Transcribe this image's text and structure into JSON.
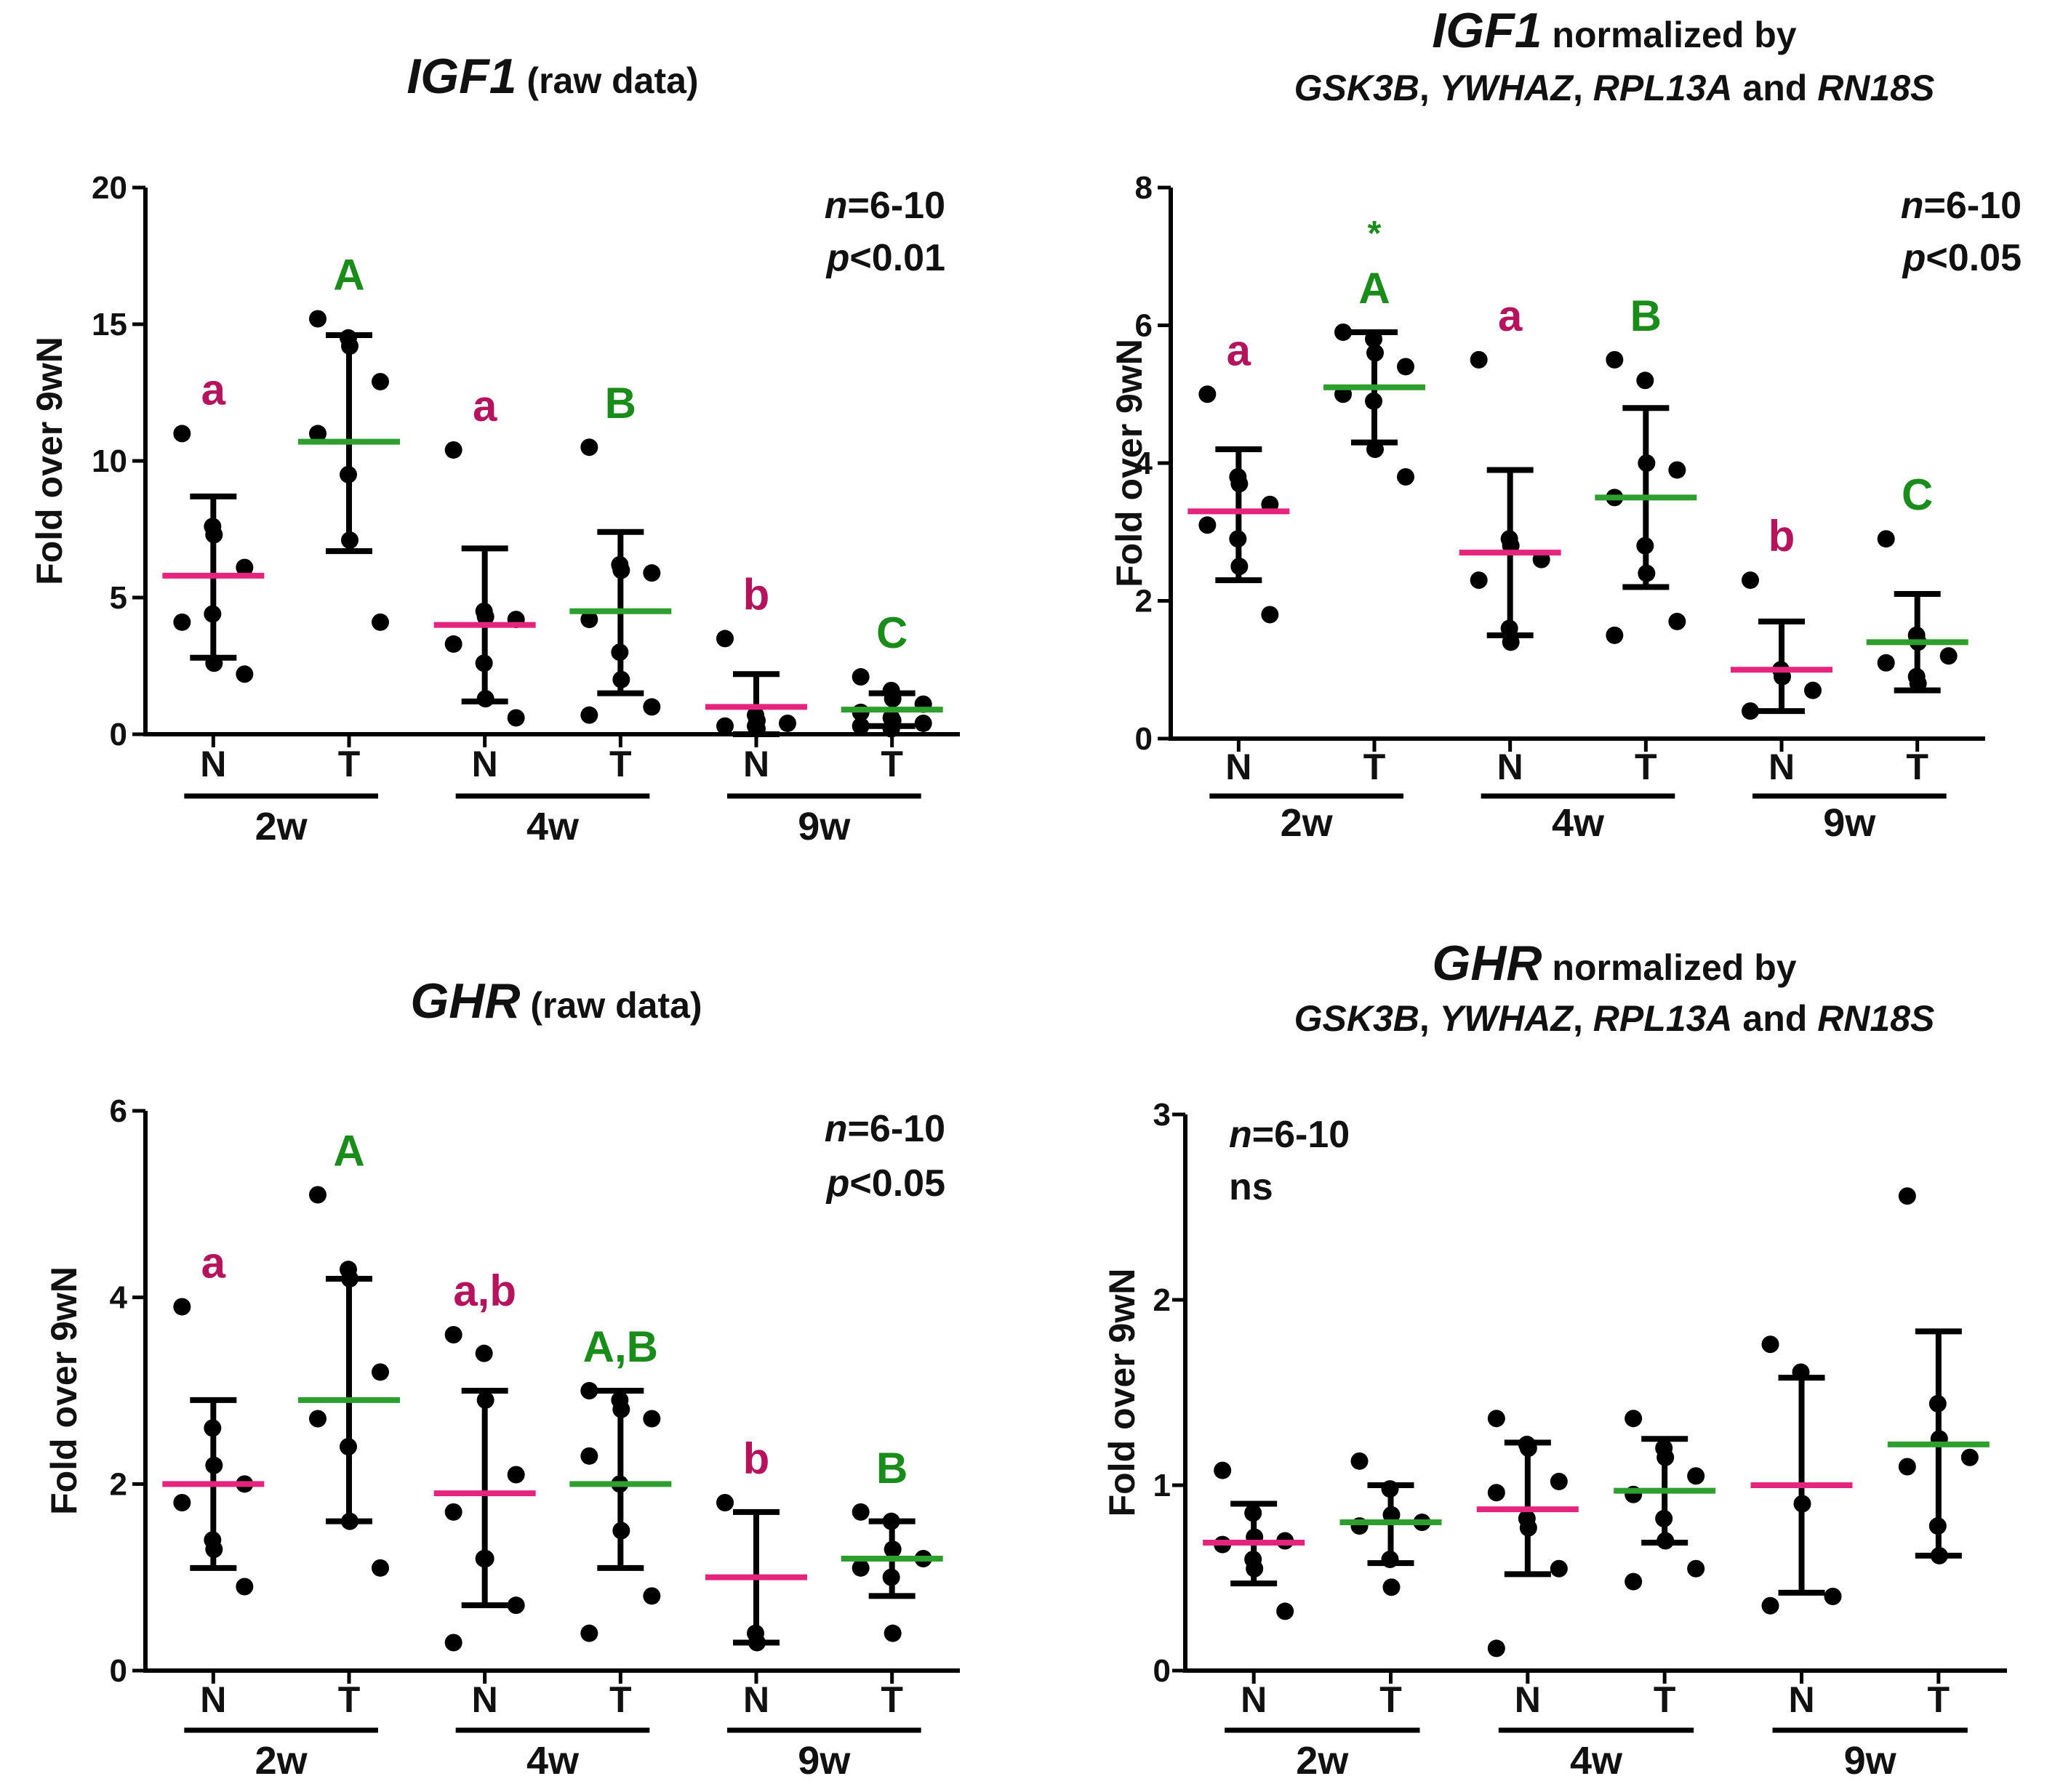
{
  "chart_data": [
    {
      "type": "scatter",
      "title_gene": "IGF1",
      "title_suffix": "(raw data)",
      "title_line2_parts": [],
      "ylabel": "Fold over 9wN",
      "ylim": [
        0,
        20
      ],
      "yticks": [
        "0",
        "5",
        "10",
        "15",
        "20"
      ],
      "stats_n_prefix": "n",
      "stats_n_value": "=6-10",
      "stats_p_prefix": "p",
      "stats_p_value": "<0.01",
      "categories": [
        "N",
        "T",
        "N",
        "T",
        "N",
        "T"
      ],
      "age_groups": [
        "2w",
        "4w",
        "9w"
      ],
      "groups": [
        {
          "label": "N",
          "age": "2w",
          "mean": 5.8,
          "sd_low": 2.8,
          "sd_high": 8.7,
          "letter": "a",
          "points": [
            11.0,
            7.6,
            7.3,
            6.1,
            4.1,
            4.4,
            2.6,
            2.2
          ]
        },
        {
          "label": "T",
          "age": "2w",
          "mean": 10.7,
          "sd_low": 6.7,
          "sd_high": 14.6,
          "letter": "A",
          "points": [
            15.2,
            14.5,
            14.2,
            12.9,
            11.0,
            9.5,
            7.1,
            4.1
          ]
        },
        {
          "label": "N",
          "age": "4w",
          "mean": 4.0,
          "sd_low": 1.2,
          "sd_high": 6.8,
          "letter": "a",
          "points": [
            10.4,
            4.5,
            4.3,
            4.2,
            3.3,
            2.6,
            1.3,
            0.6
          ]
        },
        {
          "label": "T",
          "age": "4w",
          "mean": 4.5,
          "sd_low": 1.5,
          "sd_high": 7.4,
          "letter": "B",
          "points": [
            10.5,
            6.2,
            6.0,
            5.9,
            4.2,
            3.0,
            2.0,
            1.0,
            0.7
          ]
        },
        {
          "label": "N",
          "age": "9w",
          "mean": 1.0,
          "sd_low": 0.0,
          "sd_high": 2.2,
          "letter": "b",
          "points": [
            3.5,
            0.7,
            0.5,
            0.4,
            0.3,
            0.3,
            0.2
          ]
        },
        {
          "label": "T",
          "age": "9w",
          "mean": 0.9,
          "sd_low": 0.3,
          "sd_high": 1.5,
          "letter": "C",
          "points": [
            2.1,
            1.6,
            1.3,
            1.1,
            0.8,
            0.6,
            0.5,
            0.4,
            0.3,
            0.2
          ]
        }
      ],
      "colors": {
        "N": "#b5135e",
        "T": "#1a8c1a",
        "N_mean": "#e5257d",
        "T_mean": "#2e9e2e"
      }
    },
    {
      "type": "scatter",
      "title_gene": "IGF1",
      "title_suffix": "normalized by",
      "title_line2_parts": [
        "GSK3B",
        ", ",
        "YWHAZ",
        ", ",
        "RPL13A",
        " and ",
        "RN18S"
      ],
      "ylabel": "Fold over 9wN",
      "ylim": [
        0,
        8
      ],
      "yticks": [
        "0",
        "2",
        "4",
        "6",
        "8"
      ],
      "stats_n_prefix": "n",
      "stats_n_value": "=6-10",
      "stats_p_prefix": "p",
      "stats_p_value": "<0.05",
      "categories": [
        "N",
        "T",
        "N",
        "T",
        "N",
        "T"
      ],
      "age_groups": [
        "2w",
        "4w",
        "9w"
      ],
      "groups": [
        {
          "label": "N",
          "age": "2w",
          "mean": 3.3,
          "sd_low": 2.3,
          "sd_high": 4.2,
          "letter": "a",
          "points": [
            5.0,
            3.8,
            3.7,
            3.4,
            3.1,
            2.9,
            2.5,
            1.8
          ]
        },
        {
          "label": "T",
          "age": "2w",
          "mean": 5.1,
          "sd_low": 4.3,
          "sd_high": 5.9,
          "letter": "A",
          "star": "*",
          "points": [
            5.9,
            5.8,
            5.6,
            5.4,
            5.0,
            4.9,
            4.2,
            3.8
          ]
        },
        {
          "label": "N",
          "age": "4w",
          "mean": 2.7,
          "sd_low": 1.5,
          "sd_high": 3.9,
          "letter": "a",
          "points": [
            5.5,
            2.9,
            2.8,
            2.6,
            2.3,
            1.6,
            1.4
          ]
        },
        {
          "label": "T",
          "age": "4w",
          "mean": 3.5,
          "sd_low": 2.2,
          "sd_high": 4.8,
          "letter": "B",
          "points": [
            5.5,
            5.2,
            4.0,
            3.9,
            3.5,
            2.8,
            2.4,
            1.7,
            1.5
          ]
        },
        {
          "label": "N",
          "age": "9w",
          "mean": 1.0,
          "sd_low": 0.4,
          "sd_high": 1.7,
          "letter": "b",
          "points": [
            2.3,
            1.0,
            0.9,
            0.7,
            0.4
          ]
        },
        {
          "label": "T",
          "age": "9w",
          "mean": 1.4,
          "sd_low": 0.7,
          "sd_high": 2.1,
          "letter": "C",
          "points": [
            2.9,
            1.5,
            1.4,
            1.2,
            1.1,
            0.9,
            0.8
          ]
        }
      ],
      "colors": {
        "N": "#b5135e",
        "T": "#1a8c1a",
        "N_mean": "#e5257d",
        "T_mean": "#2e9e2e"
      }
    },
    {
      "type": "scatter",
      "title_gene": "GHR",
      "title_suffix": "(raw data)",
      "title_line2_parts": [],
      "ylabel": "Fold over 9wN",
      "ylim": [
        0,
        6
      ],
      "yticks": [
        "0",
        "2",
        "4",
        "6"
      ],
      "stats_n_prefix": "n",
      "stats_n_value": "=6-10",
      "stats_p_prefix": "p",
      "stats_p_value": "<0.05",
      "categories": [
        "N",
        "T",
        "N",
        "T",
        "N",
        "T"
      ],
      "age_groups": [
        "2w",
        "4w",
        "9w"
      ],
      "groups": [
        {
          "label": "N",
          "age": "2w",
          "mean": 2.0,
          "sd_low": 1.1,
          "sd_high": 2.9,
          "letter": "a",
          "points": [
            3.9,
            2.6,
            2.2,
            2.0,
            1.8,
            1.4,
            1.3,
            0.9
          ]
        },
        {
          "label": "T",
          "age": "2w",
          "mean": 2.9,
          "sd_low": 1.6,
          "sd_high": 4.2,
          "letter": "A",
          "points": [
            5.1,
            4.3,
            4.2,
            3.2,
            2.7,
            2.4,
            1.6,
            1.1
          ]
        },
        {
          "label": "N",
          "age": "4w",
          "mean": 1.9,
          "sd_low": 0.7,
          "sd_high": 3.0,
          "letter": "a,b",
          "points": [
            3.6,
            3.4,
            2.9,
            2.1,
            1.7,
            1.2,
            1.2,
            0.7,
            0.3
          ]
        },
        {
          "label": "T",
          "age": "4w",
          "mean": 2.0,
          "sd_low": 1.1,
          "sd_high": 3.0,
          "letter": "A,B",
          "points": [
            3.0,
            2.9,
            2.8,
            2.7,
            2.3,
            2.0,
            1.5,
            0.8,
            0.4
          ]
        },
        {
          "label": "N",
          "age": "9w",
          "mean": 1.0,
          "sd_low": 0.3,
          "sd_high": 1.7,
          "letter": "b",
          "points": [
            1.8,
            0.4,
            0.3
          ]
        },
        {
          "label": "T",
          "age": "9w",
          "mean": 1.2,
          "sd_low": 0.8,
          "sd_high": 1.6,
          "letter": "B",
          "points": [
            1.7,
            1.6,
            1.3,
            1.2,
            1.1,
            1.0,
            0.4
          ]
        }
      ],
      "colors": {
        "N": "#b5135e",
        "T": "#1a8c1a",
        "N_mean": "#e5257d",
        "T_mean": "#2e9e2e"
      }
    },
    {
      "type": "scatter",
      "title_gene": "GHR",
      "title_suffix": "normalized by",
      "title_line2_parts": [
        "GSK3B",
        ", ",
        "YWHAZ",
        ", ",
        "RPL13A",
        " and ",
        "RN18S"
      ],
      "ylabel": "Fold over 9wN",
      "ylim": [
        0,
        3
      ],
      "yticks": [
        "0",
        "1",
        "2",
        "3"
      ],
      "stats_n_prefix": "n",
      "stats_n_value": "=6-10",
      "stats_p_prefix": "",
      "stats_p_value": "ns",
      "categories": [
        "N",
        "T",
        "N",
        "T",
        "N",
        "T"
      ],
      "age_groups": [
        "2w",
        "4w",
        "9w"
      ],
      "groups": [
        {
          "label": "N",
          "age": "2w",
          "mean": 0.69,
          "sd_low": 0.47,
          "sd_high": 0.9,
          "letter": "",
          "points": [
            1.08,
            0.85,
            0.72,
            0.7,
            0.68,
            0.6,
            0.55,
            0.32
          ]
        },
        {
          "label": "T",
          "age": "2w",
          "mean": 0.8,
          "sd_low": 0.58,
          "sd_high": 1.0,
          "letter": "",
          "points": [
            1.13,
            0.98,
            0.84,
            0.8,
            0.78,
            0.6,
            0.45
          ]
        },
        {
          "label": "N",
          "age": "4w",
          "mean": 0.87,
          "sd_low": 0.52,
          "sd_high": 1.23,
          "letter": "",
          "points": [
            1.36,
            1.22,
            1.2,
            1.02,
            0.96,
            0.82,
            0.77,
            0.55,
            0.12
          ]
        },
        {
          "label": "T",
          "age": "4w",
          "mean": 0.97,
          "sd_low": 0.69,
          "sd_high": 1.25,
          "letter": "",
          "points": [
            1.36,
            1.2,
            1.15,
            1.05,
            0.95,
            0.82,
            0.7,
            0.55,
            0.48
          ]
        },
        {
          "label": "N",
          "age": "9w",
          "mean": 1.0,
          "sd_low": 0.42,
          "sd_high": 1.58,
          "letter": "",
          "points": [
            1.76,
            1.61,
            0.9,
            0.4,
            0.35
          ]
        },
        {
          "label": "T",
          "age": "9w",
          "mean": 1.22,
          "sd_low": 0.62,
          "sd_high": 1.83,
          "letter": "",
          "points": [
            2.56,
            1.44,
            1.25,
            1.15,
            1.1,
            0.78,
            0.62
          ]
        }
      ],
      "colors": {
        "N": "#b5135e",
        "T": "#1a8c1a",
        "N_mean": "#e5257d",
        "T_mean": "#2e9e2e"
      }
    }
  ]
}
